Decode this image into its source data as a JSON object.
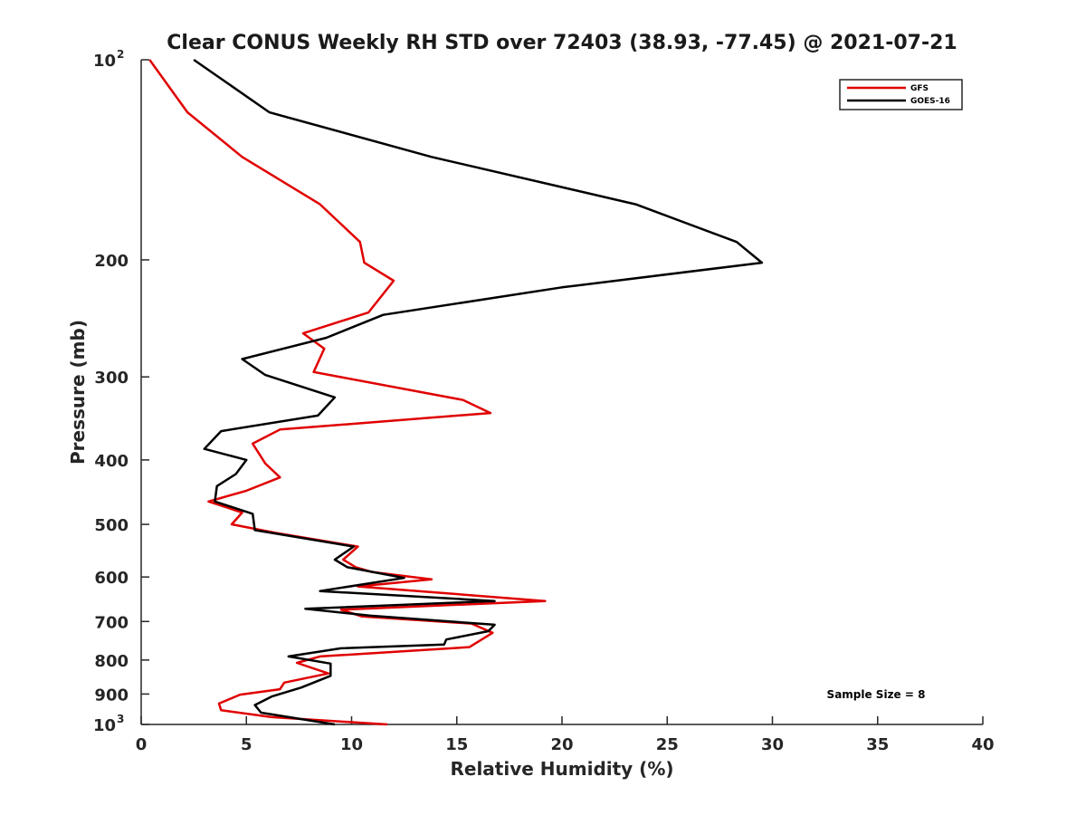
{
  "chart_data": {
    "type": "line",
    "title": "Clear CONUS Weekly RH STD over 72403 (38.93, -77.45) @ 2021-07-21",
    "xlabel": "Relative Humidity (%)",
    "ylabel": "Pressure (mb)",
    "xlim": [
      0,
      40
    ],
    "ylim": [
      100,
      1000
    ],
    "y_scale": "log",
    "y_reversed": true,
    "x_ticks": [
      0,
      5,
      10,
      15,
      20,
      25,
      30,
      35,
      40
    ],
    "y_ticks": [
      {
        "value": 100,
        "label": "10",
        "sup": "2"
      },
      {
        "value": 200,
        "label": "200",
        "sup": ""
      },
      {
        "value": 300,
        "label": "300",
        "sup": ""
      },
      {
        "value": 400,
        "label": "400",
        "sup": ""
      },
      {
        "value": 500,
        "label": "500",
        "sup": ""
      },
      {
        "value": 600,
        "label": "600",
        "sup": ""
      },
      {
        "value": 700,
        "label": "700",
        "sup": ""
      },
      {
        "value": 800,
        "label": "800",
        "sup": ""
      },
      {
        "value": 900,
        "label": "900",
        "sup": ""
      },
      {
        "value": 1000,
        "label": "10",
        "sup": "3"
      }
    ],
    "grid": false,
    "legend_position": "top-right",
    "annotation": "Sample Size = 8",
    "series": [
      {
        "name": "GFS",
        "color": "#e00000",
        "points": [
          [
            0.4,
            100
          ],
          [
            2.2,
            120
          ],
          [
            4.8,
            140
          ],
          [
            8.5,
            165
          ],
          [
            10.4,
            188
          ],
          [
            10.6,
            202
          ],
          [
            12.0,
            215
          ],
          [
            10.8,
            240
          ],
          [
            7.7,
            258
          ],
          [
            8.7,
            272
          ],
          [
            8.2,
            295
          ],
          [
            15.3,
            325
          ],
          [
            16.6,
            340
          ],
          [
            6.6,
            360
          ],
          [
            5.3,
            378
          ],
          [
            5.9,
            405
          ],
          [
            6.6,
            425
          ],
          [
            5.0,
            445
          ],
          [
            3.2,
            462
          ],
          [
            4.8,
            480
          ],
          [
            4.3,
            500
          ],
          [
            6.4,
            515
          ],
          [
            10.3,
            540
          ],
          [
            9.6,
            565
          ],
          [
            10.2,
            580
          ],
          [
            11.0,
            590
          ],
          [
            13.8,
            605
          ],
          [
            10.3,
            620
          ],
          [
            19.2,
            652
          ],
          [
            9.5,
            672
          ],
          [
            10.5,
            688
          ],
          [
            15.7,
            705
          ],
          [
            16.7,
            728
          ],
          [
            15.6,
            765
          ],
          [
            8.5,
            790
          ],
          [
            7.4,
            808
          ],
          [
            8.9,
            838
          ],
          [
            6.8,
            865
          ],
          [
            6.6,
            885
          ],
          [
            4.7,
            902
          ],
          [
            3.7,
            930
          ],
          [
            3.8,
            952
          ],
          [
            6.2,
            975
          ],
          [
            11.7,
            1000
          ]
        ]
      },
      {
        "name": "GOES-16",
        "color": "#000000",
        "points": [
          [
            2.5,
            100
          ],
          [
            6.1,
            120
          ],
          [
            13.8,
            140
          ],
          [
            23.5,
            165
          ],
          [
            28.3,
            188
          ],
          [
            29.5,
            202
          ],
          [
            20.0,
            220
          ],
          [
            11.5,
            242
          ],
          [
            8.8,
            262
          ],
          [
            4.8,
            282
          ],
          [
            5.9,
            298
          ],
          [
            9.2,
            322
          ],
          [
            8.4,
            343
          ],
          [
            3.8,
            362
          ],
          [
            3.0,
            385
          ],
          [
            5.0,
            400
          ],
          [
            4.5,
            420
          ],
          [
            3.6,
            438
          ],
          [
            3.5,
            462
          ],
          [
            5.3,
            482
          ],
          [
            5.4,
            510
          ],
          [
            10.1,
            540
          ],
          [
            9.2,
            565
          ],
          [
            9.8,
            580
          ],
          [
            12.5,
            602
          ],
          [
            8.5,
            630
          ],
          [
            16.8,
            652
          ],
          [
            7.8,
            670
          ],
          [
            10.9,
            686
          ],
          [
            16.8,
            708
          ],
          [
            16.5,
            724
          ],
          [
            14.5,
            745
          ],
          [
            14.4,
            758
          ],
          [
            9.5,
            768
          ],
          [
            7.0,
            790
          ],
          [
            9.0,
            810
          ],
          [
            9.0,
            845
          ],
          [
            7.6,
            880
          ],
          [
            6.2,
            908
          ],
          [
            5.4,
            935
          ],
          [
            5.7,
            960
          ],
          [
            9.2,
            1000
          ]
        ]
      }
    ]
  }
}
